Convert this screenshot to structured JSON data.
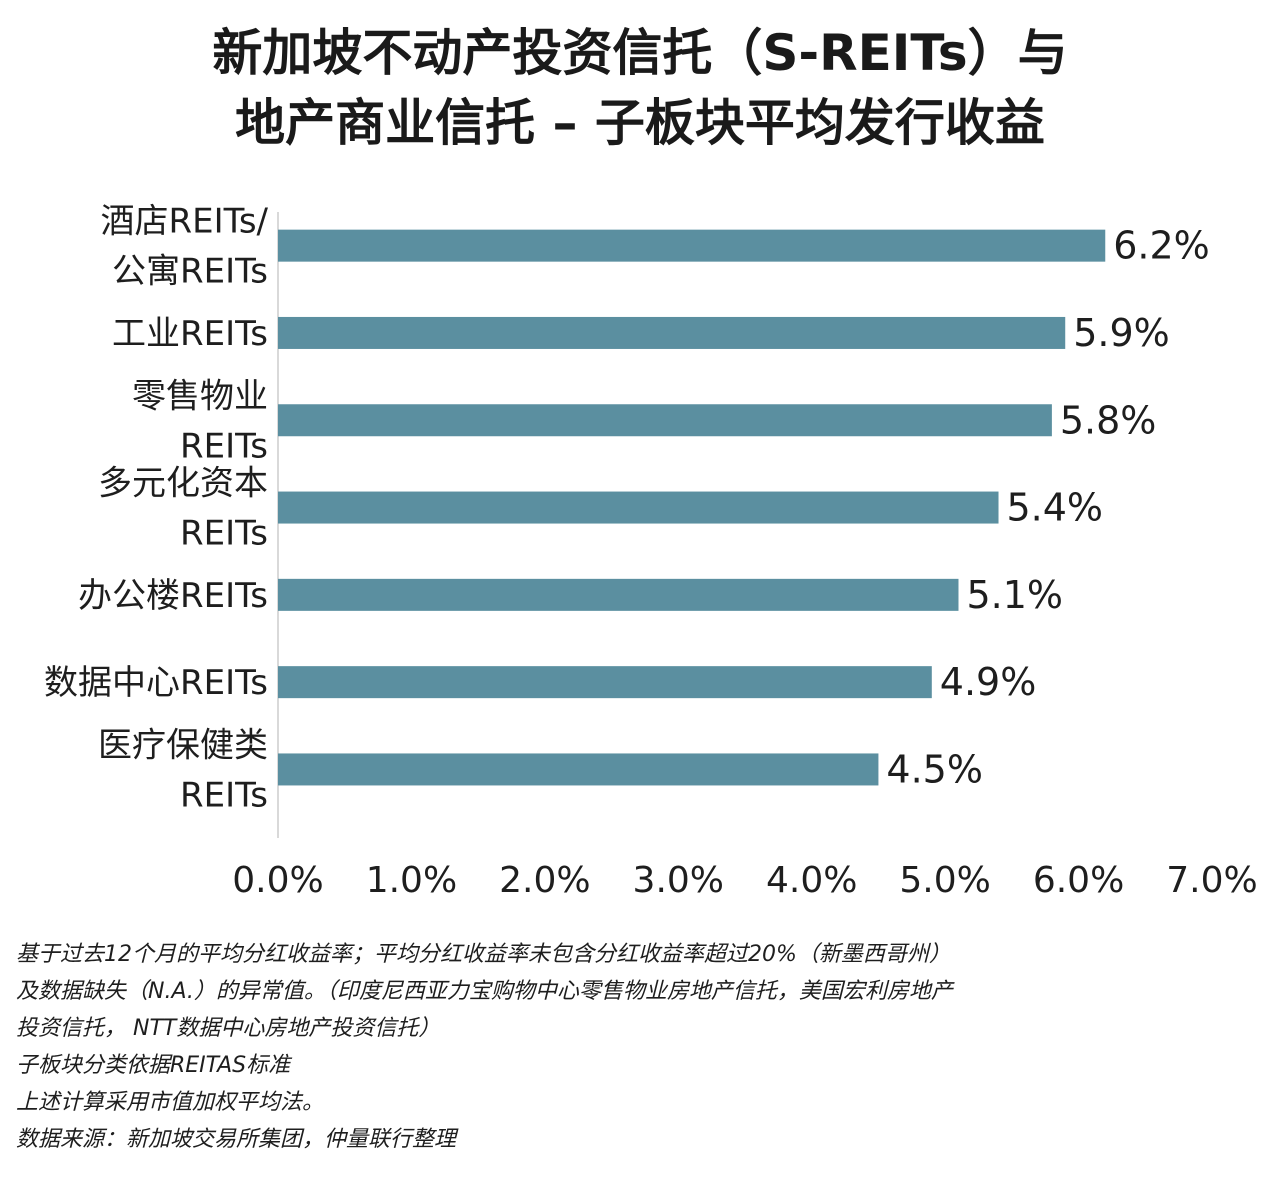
{
  "title": {
    "line1": "新加坡不动产投资信托（S-REITs）与",
    "line2": "地产商业信托 – 子板块平均发行收益"
  },
  "chart_data": {
    "type": "bar",
    "orientation": "horizontal",
    "categories": [
      [
        "酒店REITs/",
        "公寓REITs"
      ],
      [
        "工业REITs"
      ],
      [
        "零售物业",
        "REITs"
      ],
      [
        "多元化资本",
        "REITs"
      ],
      [
        "办公楼REITs"
      ],
      [
        "数据中心REITs"
      ],
      [
        "医疗保健类",
        "REITs"
      ]
    ],
    "values": [
      6.2,
      5.9,
      5.8,
      5.4,
      5.1,
      4.9,
      4.5
    ],
    "value_labels": [
      "6.2%",
      "5.9%",
      "5.8%",
      "5.4%",
      "5.1%",
      "4.9%",
      "4.5%"
    ],
    "xlim": [
      0,
      7
    ],
    "x_ticks": [
      0,
      1,
      2,
      3,
      4,
      5,
      6,
      7
    ],
    "x_tick_labels": [
      "0.0%",
      "1.0%",
      "2.0%",
      "3.0%",
      "4.0%",
      "5.0%",
      "6.0%",
      "7.0%"
    ],
    "grid": false,
    "legend": "none",
    "bar_color": "#5b8fa0",
    "axis_color": "#d9d9d9"
  },
  "notes": [
    "基于过去12个月的平均分红收益率；平均分红收益率未包含分红收益率超过20%（新墨西哥州）",
    "及数据缺失（N.A.）的异常值。（印度尼西亚力宝购物中心零售物业房地产信托，美国宏利房地产",
    "投资信托， NTT数据中心房地产投资信托）",
    "子板块分类依据REITAS标准",
    "上述计算采用市值加权平均法。",
    "数据来源：新加坡交易所集团，仲量联行整理"
  ]
}
